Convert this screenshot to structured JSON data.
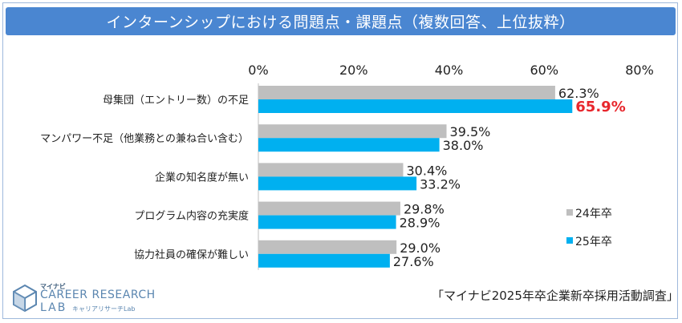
{
  "header": {
    "title": "インターンシップにおける問題点・課題点（複数回答、上位抜粋）"
  },
  "chart_data": {
    "type": "bar",
    "orientation": "horizontal",
    "title": "インターンシップにおける問題点・課題点（複数回答、上位抜粋）",
    "xlim": [
      0,
      80
    ],
    "ticks": [
      "0%",
      "20%",
      "40%",
      "60%",
      "80%"
    ],
    "tick_values": [
      0,
      20,
      40,
      60,
      80
    ],
    "categories": [
      "母集団（エントリー数）の不足",
      "マンパワー不足（他業務との兼ね合い含む）",
      "企業の知名度が無い",
      "プログラム内容の充実度",
      "協力社員の確保が難しい"
    ],
    "series": [
      {
        "name": "24年卒",
        "color": "#bfbfbf",
        "values": [
          62.3,
          39.5,
          30.4,
          29.8,
          29.0
        ],
        "labels": [
          "62.3%",
          "39.5%",
          "30.4%",
          "29.8%",
          "29.0%"
        ]
      },
      {
        "name": "25年卒",
        "color": "#00b0f0",
        "values": [
          65.9,
          38.0,
          33.2,
          28.9,
          27.6
        ],
        "labels": [
          "65.9%",
          "38.0%",
          "33.2%",
          "28.9%",
          "27.6%"
        ]
      }
    ],
    "highlight": {
      "series": 1,
      "index": 0,
      "color": "#e8272d"
    },
    "legend_position": "right",
    "grid": false
  },
  "footer": {
    "source": "「マイナビ2025年卒企業新卒採用活動調査」",
    "logo_small": "マイナビ",
    "logo_main": "CAREER RESEARCH",
    "logo_lab": "LAB",
    "logo_sub": "キャリアリサーチLab",
    "logo_color": "#5b86b0"
  }
}
